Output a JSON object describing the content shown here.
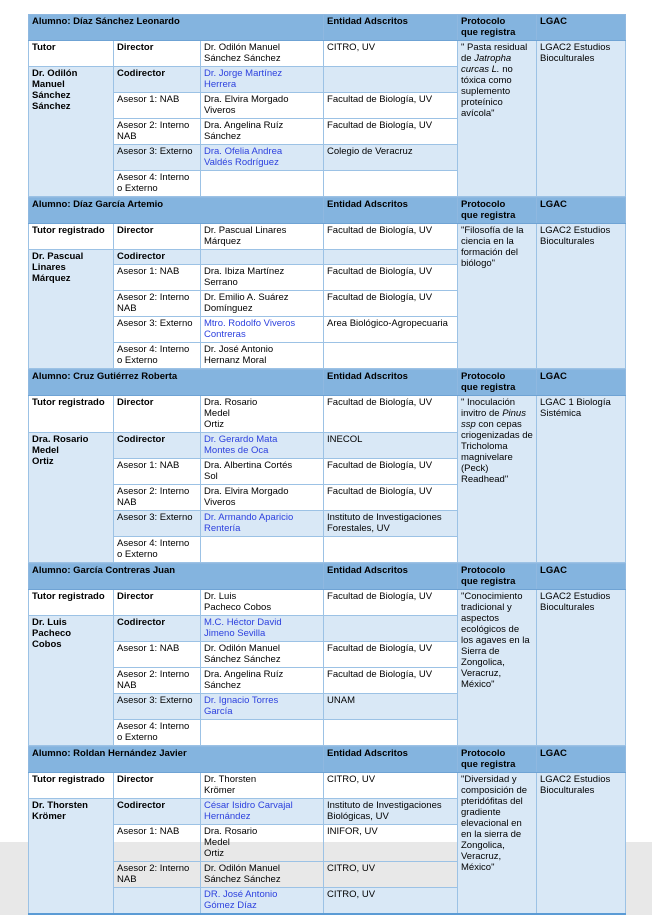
{
  "headers": {
    "entidad": "Entidad Adscritos",
    "protocolo": "Protocolo\nque registra",
    "lgac": "LGAC"
  },
  "colors": {
    "header_band": "#84B4DF",
    "row_tint": "#D9E8F6",
    "border": "#9CC2E5",
    "link_blue": "#2D41DE"
  },
  "sections": [
    {
      "student": "Alumno: Díaz Sánchez Leonardo",
      "tutor_label": "Tutor",
      "tutor_name": "Dr. Odilón\nManuel\nSánchez\nSánchez",
      "rows": [
        {
          "role": "Director",
          "name": "Dr. Odilón Manuel\nSánchez Sánchez",
          "entity": "CITRO,  UV"
        },
        {
          "role": "Codirector",
          "name": "Dr.  Jorge Martínez\nHerrera",
          "entity": ""
        },
        {
          "role": "Asesor 1: NAB",
          "name": "Dra. Elvira Morgado\nViveros",
          "entity": "Facultad de Biología, UV"
        },
        {
          "role": "Asesor 2: Interno NAB",
          "name": "Dra.  Angelina Ruíz\nSánchez",
          "entity": "Facultad de Biología, UV"
        },
        {
          "role": "Asesor 3: Externo",
          "name": "Dra. Ofelia Andrea\nValdés Rodríguez",
          "entity": "Colegio de Veracruz"
        },
        {
          "role": "Asesor 4: Interno o Externo",
          "name": "",
          "entity": ""
        }
      ],
      "protocolo": [
        {
          "t": "\" Pasta residual de "
        },
        {
          "t": "Jatropha curcas L.",
          "italic": true
        },
        {
          "t": " no tóxica como suplemento proteínico avícola\""
        }
      ],
      "lgac": "LGAC2 Estudios Bioculturales"
    },
    {
      "student": "Alumno: Díaz García Artemio",
      "tutor_label": "Tutor registrado",
      "tutor_name": "Dr. Pascual\nLinares\nMárquez",
      "rows": [
        {
          "role": "Director",
          "name": "Dr. Pascual Linares\nMárquez",
          "entity": "Facultad de Biología, UV"
        },
        {
          "role": "Codirector",
          "name": "",
          "entity": ""
        },
        {
          "role": "Asesor 1: NAB",
          "name": "Dra. Ibiza Martínez\nSerrano",
          "entity": "Facultad de Biología,  UV"
        },
        {
          "role": "Asesor 2: Interno NAB",
          "name": "Dr. Emilio A. Suárez\nDomínguez",
          "entity": "Facultad de Biología,  UV"
        },
        {
          "role": "Asesor 3: Externo",
          "name": "Mtro. Rodolfo Viveros\nContreras",
          "entity": "Area Biológico-Agropecuaria"
        },
        {
          "role": "Asesor 4: Interno o Externo",
          "name": "Dr. José Antonio\nHernanz Moral",
          "entity": ""
        }
      ],
      "protocolo": [
        {
          "t": "\"Filosofía de la ciencia en la formación del biólogo\""
        }
      ],
      "lgac": "LGAC2 Estudios Bioculturales"
    },
    {
      "student": "Alumno: Cruz Gutiérrez Roberta",
      "tutor_label": "Tutor registrado",
      "tutor_name": "Dra. Rosario\nMedel\nOrtiz",
      "rows": [
        {
          "role": "Director",
          "name": "Dra. Rosario\nMedel\nOrtiz",
          "entity": "Facultad de Biología,  UV"
        },
        {
          "role": "Codirector",
          "name": "Dr.  Gerardo Mata\nMontes de Oca",
          "entity": "INECOL"
        },
        {
          "role": "Asesor 1: NAB",
          "name": "Dra. Albertina Cortés\nSol",
          "entity": "Facultad de Biología,  UV"
        },
        {
          "role": "Asesor 2: Interno NAB",
          "name": "Dra. Elvira Morgado\nViveros",
          "entity": "Facultad de Biología,  UV"
        },
        {
          "role": "Asesor 3: Externo",
          "name": "Dr. Armando Aparicio\nRentería",
          "entity": "Instituto de Investigaciones\nForestales, UV"
        },
        {
          "role": "Asesor 4: Interno o Externo",
          "name": "",
          "entity": ""
        }
      ],
      "protocolo": [
        {
          "t": "\" Inoculación invitro  de "
        },
        {
          "t": "Pinus ssp",
          "italic": true
        },
        {
          "t": " con cepas criogenizadas de Tricholoma magnivelare (Peck) Readhead\""
        }
      ],
      "lgac": "LGAC 1 Biología Sistémica"
    },
    {
      "student": "Alumno: García Contreras Juan",
      "tutor_label": "Tutor registrado",
      "tutor_name": "Dr. Luis\nPacheco\nCobos",
      "rows": [
        {
          "role": "Director",
          "name": "Dr. Luis\nPacheco Cobos",
          "entity": "Facultad de Biología,  UV"
        },
        {
          "role": "Codirector",
          "name": "M.C. Héctor David\nJimeno Sevilla",
          "entity": ""
        },
        {
          "role": "Asesor 1: NAB",
          "name": "Dr.  Odilón Manuel\nSánchez Sánchez",
          "entity": "Facultad de Biología,  UV"
        },
        {
          "role": "Asesor 2: Interno NAB",
          "name": "Dra.  Angelina Ruíz\nSánchez",
          "entity": "Facultad de Biología,  UV"
        },
        {
          "role": "Asesor 3: Externo",
          "name": "Dr. Ignacio Torres\nGarcía",
          "entity": "UNAM"
        },
        {
          "role": "Asesor 4: Interno o Externo",
          "name": "",
          "entity": ""
        }
      ],
      "protocolo": [
        {
          "t": "\"Conocimiento tradicional y aspectos ecológicos de los agaves en la Sierra de Zongolica, Veracruz, México\""
        }
      ],
      "lgac": "LGAC2 Estudios Bioculturales"
    },
    {
      "student": "Alumno: Roldan Hernández Javier",
      "tutor_label": "Tutor registrado",
      "tutor_name": "Dr. Thorsten\nKrömer",
      "rows": [
        {
          "role": "Director",
          "name": "Dr. Thorsten\nKrömer",
          "entity": "CITRO,  UV"
        },
        {
          "role": "Codirector",
          "name": "César Isidro Carvajal\nHernández",
          "entity": "Instituto de Investigaciones\nBiológicas, UV"
        },
        {
          "role": "Asesor 1: NAB",
          "name": "Dra. Rosario\nMedel\nOrtiz",
          "entity": "INIFOR,  UV"
        },
        {
          "role": "Asesor 2: Interno NAB",
          "name": "Dr.  Odilón Manuel\nSánchez Sánchez",
          "entity": "CITRO,  UV"
        },
        {
          "role": "",
          "name": "DR. José Antonio\nGómez Díaz",
          "entity": "CITRO,  UV"
        }
      ],
      "protocolo": [
        {
          "t": "\"Diversidad y composición de pteridófitas del gradiente elevacional en en la sierra de Zongolica, Veracruz, México\""
        }
      ],
      "lgac": "LGAC2 Estudios Bioculturales"
    }
  ]
}
